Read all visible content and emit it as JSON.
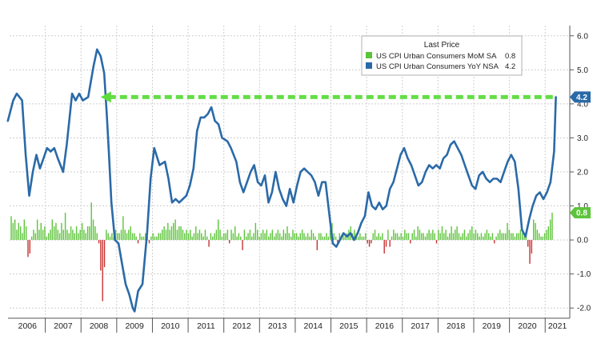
{
  "chart_data": {
    "type": "line",
    "legend": {
      "title": "Last Price",
      "placement": "top-right",
      "entries": [
        {
          "label": "US CPI Urban Consumers MoM SA",
          "value": "0.8",
          "color": "#5cc43a"
        },
        {
          "label": "US CPI Urban Consumers YoY NSA",
          "value": "4.2",
          "color": "#2a6aa8"
        }
      ]
    },
    "y_ticks": [
      "6.0",
      "5.0",
      "4.0",
      "3.0",
      "2.0",
      "1.0",
      "0.0",
      "-1.0",
      "-2.0"
    ],
    "ylim": [
      -2.3,
      6.3
    ],
    "x_labels": [
      "2006",
      "2007",
      "2008",
      "2009",
      "2010",
      "2011",
      "2012",
      "2013",
      "2014",
      "2015",
      "2016",
      "2017",
      "2018",
      "2019",
      "2020",
      "2021"
    ],
    "xlim": [
      2006.0,
      2021.6
    ],
    "grid": true,
    "badges": {
      "yoy": "4.2",
      "mom": "0.8"
    },
    "reference_line": {
      "value": 4.2,
      "from_x": 2008.55,
      "to_x": 2021.3,
      "color": "#5cdc3c",
      "style": "dashed-arrow"
    },
    "series": [
      {
        "name": "US CPI Urban Consumers YoY NSA",
        "kind": "line",
        "color": "#2a6aa8",
        "x": [
          2005.95,
          2006.1,
          2006.2,
          2006.35,
          2006.45,
          2006.55,
          2006.65,
          2006.75,
          2006.85,
          2006.95,
          2007.05,
          2007.15,
          2007.25,
          2007.35,
          2007.5,
          2007.6,
          2007.75,
          2007.85,
          2007.95,
          2008.05,
          2008.2,
          2008.35,
          2008.45,
          2008.55,
          2008.65,
          2008.72,
          2008.78,
          2008.85,
          2008.95,
          2009.05,
          2009.15,
          2009.25,
          2009.35,
          2009.45,
          2009.5,
          2009.6,
          2009.72,
          2009.85,
          2009.95,
          2010.05,
          2010.2,
          2010.35,
          2010.45,
          2010.55,
          2010.65,
          2010.75,
          2010.85,
          2010.95,
          2011.05,
          2011.15,
          2011.25,
          2011.35,
          2011.45,
          2011.55,
          2011.65,
          2011.75,
          2011.85,
          2011.95,
          2012.1,
          2012.2,
          2012.35,
          2012.45,
          2012.55,
          2012.65,
          2012.75,
          2012.85,
          2012.95,
          2013.05,
          2013.15,
          2013.25,
          2013.35,
          2013.45,
          2013.55,
          2013.65,
          2013.75,
          2013.85,
          2013.95,
          2014.05,
          2014.15,
          2014.25,
          2014.35,
          2014.45,
          2014.55,
          2014.65,
          2014.75,
          2014.85,
          2014.95,
          2015.05,
          2015.15,
          2015.25,
          2015.35,
          2015.45,
          2015.55,
          2015.65,
          2015.75,
          2015.85,
          2015.95,
          2016.05,
          2016.15,
          2016.25,
          2016.35,
          2016.45,
          2016.55,
          2016.65,
          2016.75,
          2016.85,
          2016.95,
          2017.05,
          2017.15,
          2017.25,
          2017.35,
          2017.45,
          2017.55,
          2017.65,
          2017.75,
          2017.85,
          2017.95,
          2018.05,
          2018.15,
          2018.25,
          2018.35,
          2018.45,
          2018.55,
          2018.65,
          2018.75,
          2018.85,
          2018.95,
          2019.05,
          2019.15,
          2019.25,
          2019.35,
          2019.45,
          2019.55,
          2019.65,
          2019.75,
          2019.85,
          2019.95,
          2020.05,
          2020.15,
          2020.25,
          2020.35,
          2020.45,
          2020.55,
          2020.65,
          2020.75,
          2020.85,
          2020.95,
          2021.05,
          2021.15,
          2021.25,
          2021.3
        ],
        "values": [
          3.5,
          4.1,
          4.3,
          4.1,
          2.5,
          1.3,
          2.0,
          2.5,
          2.1,
          2.4,
          2.7,
          2.6,
          2.7,
          2.4,
          2.0,
          2.8,
          4.3,
          4.1,
          4.3,
          4.1,
          4.2,
          5.1,
          5.6,
          5.4,
          4.9,
          3.7,
          2.6,
          1.1,
          0.0,
          -0.1,
          -0.7,
          -1.3,
          -1.6,
          -2.0,
          -2.1,
          -1.5,
          -1.3,
          0.2,
          1.8,
          2.7,
          2.2,
          2.3,
          1.8,
          1.1,
          1.2,
          1.1,
          1.2,
          1.3,
          1.6,
          2.1,
          3.2,
          3.6,
          3.6,
          3.7,
          3.9,
          3.5,
          3.4,
          3.0,
          2.9,
          2.7,
          2.3,
          1.7,
          1.4,
          1.7,
          2.0,
          2.2,
          1.7,
          1.6,
          1.9,
          1.1,
          1.4,
          2.0,
          1.5,
          1.2,
          1.0,
          1.5,
          1.1,
          1.6,
          2.0,
          2.1,
          2.0,
          1.9,
          1.7,
          1.3,
          1.7,
          1.7,
          0.8,
          -0.1,
          -0.2,
          0.0,
          0.2,
          0.1,
          0.2,
          0.0,
          0.2,
          0.5,
          0.7,
          1.4,
          1.0,
          0.9,
          1.1,
          0.9,
          1.0,
          1.5,
          1.7,
          2.1,
          2.5,
          2.7,
          2.4,
          2.2,
          1.9,
          1.6,
          1.7,
          2.0,
          2.2,
          2.1,
          2.2,
          2.1,
          2.4,
          2.5,
          2.8,
          2.9,
          2.7,
          2.5,
          2.2,
          1.9,
          1.6,
          1.5,
          1.9,
          2.0,
          1.8,
          1.7,
          1.8,
          1.8,
          1.7,
          2.0,
          2.3,
          2.5,
          2.3,
          1.5,
          0.3,
          0.1,
          0.6,
          1.0,
          1.3,
          1.4,
          1.2,
          1.4,
          1.7,
          2.6,
          4.2
        ]
      },
      {
        "name": "US CPI Urban Consumers MoM SA",
        "kind": "bar",
        "color_positive": "#5cc43a",
        "color_negative": "#c83232",
        "values": [
          0.7,
          0.5,
          0.6,
          0.3,
          0.5,
          0.4,
          0.2,
          0.6,
          0.4,
          -0.5,
          -0.4,
          0.1,
          0.3,
          0.2,
          0.6,
          0.3,
          0.5,
          0.3,
          0.4,
          0.1,
          0.2,
          0.3,
          0.6,
          0.4,
          0.5,
          0.3,
          0.2,
          0.5,
          0.3,
          0.8,
          0.3,
          0.2,
          0.4,
          0.3,
          0.2,
          0.4,
          0.2,
          0.3,
          0.5,
          0.3,
          0.2,
          0.4,
          0.4,
          1.1,
          0.6,
          0.4,
          0.2,
          -0.1,
          -0.9,
          -1.8,
          -0.8,
          0.3,
          0.2,
          0.1,
          0.2,
          0.1,
          0.3,
          0.2,
          0.2,
          0.3,
          0.7,
          0.3,
          0.2,
          0.3,
          0.4,
          0.2,
          0.2,
          0.1,
          -0.1,
          0.2,
          0.1,
          0.1,
          0.2,
          0.1,
          -0.1,
          0.1,
          0.2,
          0.1,
          0.1,
          0.2,
          0.2,
          0.3,
          0.4,
          0.3,
          0.5,
          0.3,
          0.4,
          0.5,
          0.6,
          0.3,
          0.4,
          0.4,
          0.3,
          0.2,
          0.3,
          0.2,
          0.3,
          0.1,
          0.2,
          0.4,
          0.2,
          0.3,
          0.2,
          0.1,
          0.3,
          0.1,
          -0.2,
          0.2,
          0.1,
          0.2,
          0.3,
          0.6,
          0.3,
          0.1,
          0.2,
          0.2,
          0.3,
          -0.1,
          0.3,
          0.2,
          0.4,
          0.1,
          0.2,
          0.1,
          -0.3,
          0.3,
          0.1,
          0.2,
          0.3,
          0.1,
          0.2,
          0.5,
          0.3,
          0.1,
          0.2,
          0.3,
          0.2,
          0.3,
          0.1,
          0.2,
          0.3,
          0.1,
          0.2,
          0.3,
          0.2,
          0.1,
          0.3,
          0.2,
          0.4,
          0.2,
          0.1,
          0.3,
          0.2,
          0.2,
          0.1,
          0.2,
          0.3,
          0.2,
          0.1,
          0.2,
          0.1,
          0.3,
          0.2,
          0.1,
          -0.3,
          0.2,
          0.2,
          0.1,
          0.1,
          0.2,
          0.1,
          0.3,
          0.5,
          0.2,
          0.1,
          -0.1,
          0.2,
          0.1,
          0.2,
          0.1,
          0.2,
          0.3,
          0.4,
          0.2,
          0.3,
          0.2,
          0.1,
          0.2,
          0.1,
          0.1,
          0.2,
          -0.1,
          -0.2,
          -0.1,
          0.2,
          0.3,
          0.1,
          0.2,
          0.1,
          0.2,
          -0.4,
          -0.2,
          0.3,
          -0.2,
          0.1,
          0.3,
          0.2,
          0.2,
          0.1,
          0.2,
          0.1,
          0.3,
          0.2,
          0.2,
          -0.1,
          0.2,
          0.3,
          0.1,
          0.4,
          0.3,
          0.2,
          0.2,
          0.1,
          0.2,
          0.3,
          0.2,
          0.3,
          0.2,
          -0.1,
          0.3,
          0.2,
          0.4,
          0.2,
          0.3,
          0.1,
          0.2,
          0.4,
          0.2,
          0.3,
          0.4,
          0.2,
          0.1,
          0.2,
          0.3,
          0.1,
          0.2,
          0.3,
          0.4,
          0.2,
          0.3,
          0.2,
          0.1,
          0.2,
          0.1,
          0.2,
          0.3,
          0.2,
          0.1,
          0.2,
          -0.1,
          0.1,
          0.2,
          0.3,
          0.2,
          0.2,
          0.2,
          0.5,
          0.3,
          0.2,
          0.2,
          0.1,
          0.2,
          0.2,
          0.3,
          0.2,
          0.1,
          0.2,
          -0.2,
          -0.7,
          -0.4,
          0.6,
          0.5,
          0.3,
          0.2,
          0.1,
          0.1,
          0.2,
          0.3,
          0.4,
          0.6,
          0.8
        ]
      }
    ]
  }
}
